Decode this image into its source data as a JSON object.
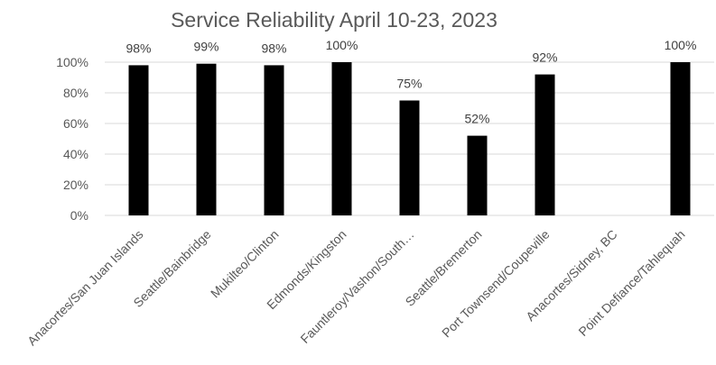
{
  "chart_data": {
    "type": "bar",
    "title": "Service Reliability April 10-23, 2023",
    "xlabel": "",
    "ylabel": "",
    "categories": [
      "Anacortes/San Juan Islands",
      "Seattle/Bainbridge",
      "Mukilteo/Clinton",
      "Edmonds/Kingston",
      "Fauntleroy/Vashon/South…",
      "Seattle/Bremerton",
      "Port Townsend/Coupeville",
      "Anacortes/Sidney, BC",
      "Point Defiance/Tahlequah"
    ],
    "values": [
      98,
      99,
      98,
      100,
      75,
      52,
      92,
      null,
      100
    ],
    "data_labels": [
      "98%",
      "99%",
      "98%",
      "100%",
      "75%",
      "52%",
      "92%",
      "",
      "100%"
    ],
    "ylim": [
      0,
      100
    ],
    "yticks": [
      0,
      20,
      40,
      60,
      80,
      100
    ],
    "ytick_labels": [
      "0%",
      "20%",
      "40%",
      "60%",
      "80%",
      "100%"
    ],
    "grid": true,
    "legend": "none",
    "bar_color": "#000000"
  }
}
